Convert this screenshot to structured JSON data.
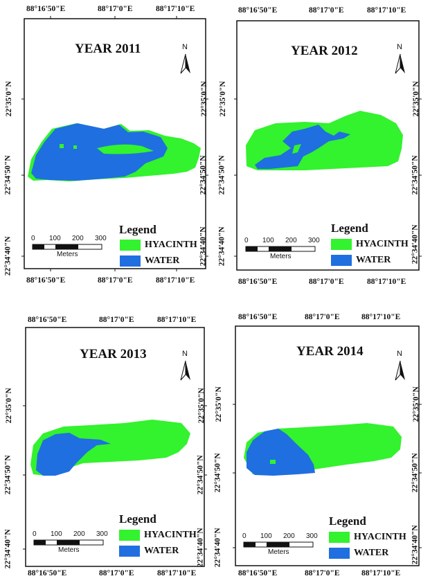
{
  "colors": {
    "hyacinth": "#33f22e",
    "water": "#1f6fe0",
    "frame": "#111111"
  },
  "legend": {
    "title": "Legend",
    "items": [
      {
        "label": "HYACINTH"
      },
      {
        "label": "WATER"
      }
    ]
  },
  "scale": {
    "ticks": [
      "0",
      "100",
      "200",
      "300"
    ],
    "unit": "Meters"
  },
  "north": {
    "label": "N"
  },
  "panels": [
    {
      "title": "YEAR 2011",
      "top_lon": [
        "88°16'50\"E",
        "88°17'0\"E",
        "88°17'10\"E"
      ],
      "bottom_lon": [
        "88°16'50\"E",
        "88°17'0\"E",
        "88°17'10\"E"
      ],
      "left_lat": [
        "22°35'0\"N",
        "22°34'50\"N",
        "22°34'40\"N"
      ],
      "right_lat": [
        "22°35'0\"N",
        "22°34'50\"N",
        "22°34'40\"N"
      ],
      "water_fraction_desc": "high"
    },
    {
      "title": "YEAR 2012",
      "top_lon": [
        "88°16'50\"E",
        "88°17'0\"E",
        "88°17'10\"E"
      ],
      "bottom_lon": [
        "88°16'50\"E",
        "88°17'0\"E",
        "88°17'10\"E"
      ],
      "left_lat": [
        "22°35'0\"N",
        "22°34'50\"N",
        "22°34'40\"N"
      ],
      "right_lat": [
        "22°35'0\"N",
        "22°34'50\"N",
        "22°34'40\"N"
      ],
      "water_fraction_desc": "low"
    },
    {
      "title": "YEAR 2013",
      "top_lon": [
        "88°16'50\"E",
        "88°17'0\"E",
        "88°17'10\"E"
      ],
      "bottom_lon": [
        "88°16'50\"E",
        "88°17'0\"E",
        "88°17'10\"E"
      ],
      "left_lat": [
        "22°35'0\"N",
        "22°34'50\"N",
        "22°34'40\"N"
      ],
      "right_lat": [
        "22°35'0\"N",
        "22°34'50\"N",
        "22°34'40\"N"
      ],
      "water_fraction_desc": "medium"
    },
    {
      "title": "YEAR 2014",
      "top_lon": [
        "88°16'50\"E",
        "88°17'0\"E",
        "88°17'10\"E"
      ],
      "bottom_lon": [
        "88°16'50\"E",
        "88°17'0\"E",
        "88°17'10\"E"
      ],
      "left_lat": [
        "22°35'0\"N",
        "22°34'50\"N",
        "22°34'40\"N"
      ],
      "right_lat": [
        "22°35'0\"N",
        "22°34'50\"N",
        "22°34'40\"N"
      ],
      "water_fraction_desc": "medium"
    }
  ]
}
